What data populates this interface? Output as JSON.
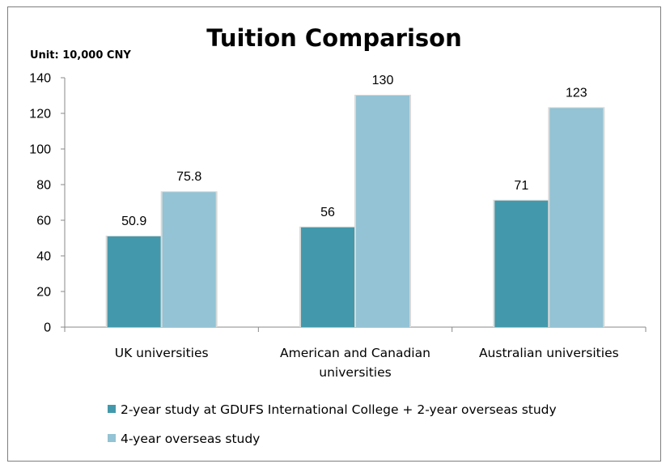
{
  "chart_data": {
    "type": "bar",
    "title": "Tuition Comparison",
    "unit_label": "Unit: 10,000 CNY",
    "xlabel": "",
    "ylabel": "",
    "ylim": [
      0,
      140
    ],
    "ytick_step": 20,
    "yticks": [
      "0",
      "20",
      "40",
      "60",
      "80",
      "100",
      "120",
      "140"
    ],
    "grid": false,
    "legend_position": "bottom",
    "categories": [
      [
        "UK universities"
      ],
      [
        "American and Canadian",
        "universities"
      ],
      [
        "Australian universities"
      ]
    ],
    "series": [
      {
        "name": "2-year study at GDUFS International College + 2-year overseas study",
        "color": "#4399ab",
        "values": [
          50.9,
          56,
          71
        ],
        "labels": [
          "50.9",
          "56",
          "71"
        ]
      },
      {
        "name": "4-year overseas study",
        "color": "#93c3d4",
        "values": [
          75.8,
          130,
          123
        ],
        "labels": [
          "75.8",
          "130",
          "123"
        ]
      }
    ]
  }
}
